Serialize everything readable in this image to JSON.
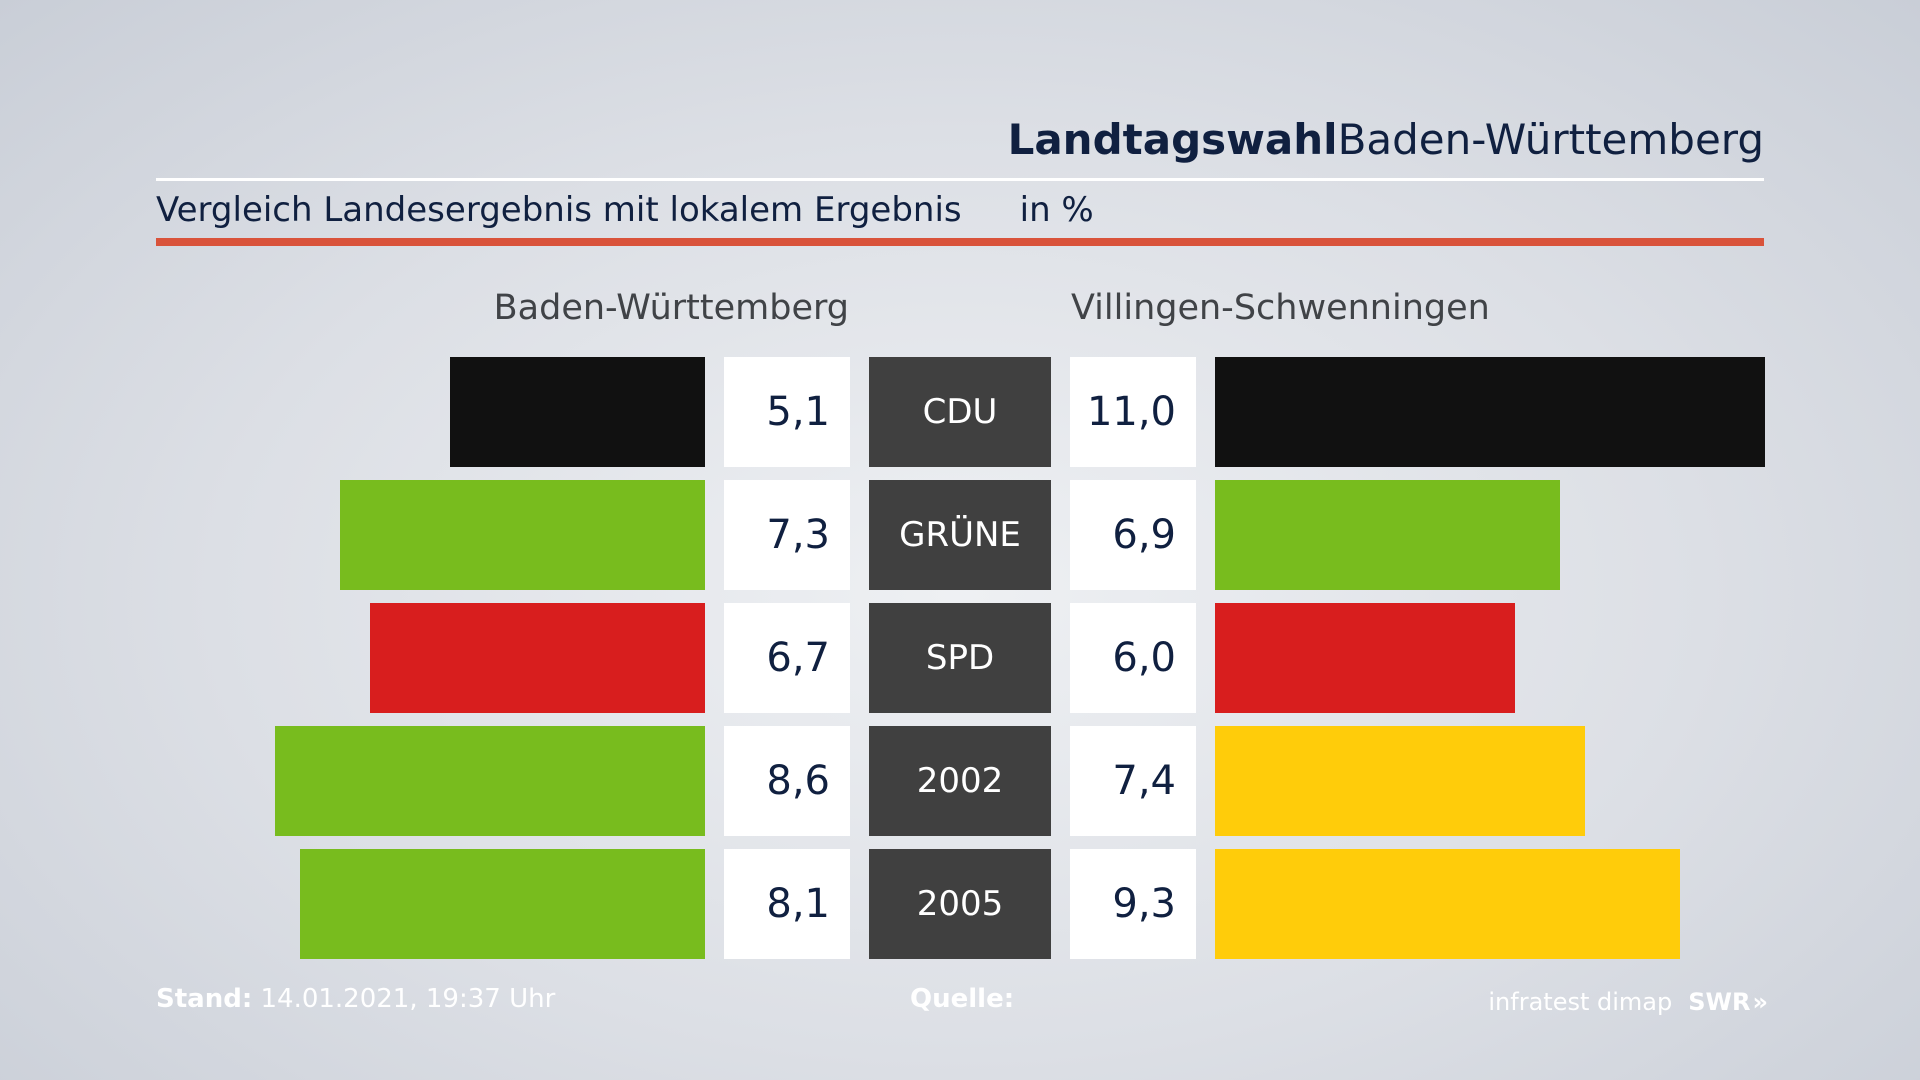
{
  "header": {
    "title_bold": "Landtagswahl",
    "title_regular": "Baden-Württemberg",
    "subtitle": "Vergleich Landesergebnis mit lokalem Ergebnis",
    "unit": "in %"
  },
  "chart_data": {
    "type": "bar",
    "left_label": "Baden-Württemberg",
    "right_label": "Villingen-Schwenningen",
    "categories": [
      "CDU",
      "GRÜNE",
      "SPD",
      "2002",
      "2005"
    ],
    "series": [
      {
        "name": "Baden-Württemberg",
        "values": [
          5.1,
          7.3,
          6.7,
          8.6,
          8.1
        ],
        "display": [
          "5,1",
          "7,3",
          "6,7",
          "8,6",
          "8,1"
        ],
        "colors": [
          "#111111",
          "#78bc1e",
          "#d81e1e",
          "#78bc1e",
          "#78bc1e"
        ]
      },
      {
        "name": "Villingen-Schwenningen",
        "values": [
          11.0,
          6.9,
          6.0,
          7.4,
          9.3
        ],
        "display": [
          "11,0",
          "6,9",
          "6,0",
          "7,4",
          "9,3"
        ],
        "colors": [
          "#111111",
          "#78bc1e",
          "#d81e1e",
          "#ffcc0a",
          "#ffcc0a"
        ]
      }
    ]
  },
  "footer": {
    "stand_label": "Stand:",
    "stand_value": "14.01.2021, 19:37 Uhr",
    "source_label": "Quelle:",
    "source_name": "infratest dimap",
    "brand": "SWR",
    "brand_mark": "»"
  }
}
